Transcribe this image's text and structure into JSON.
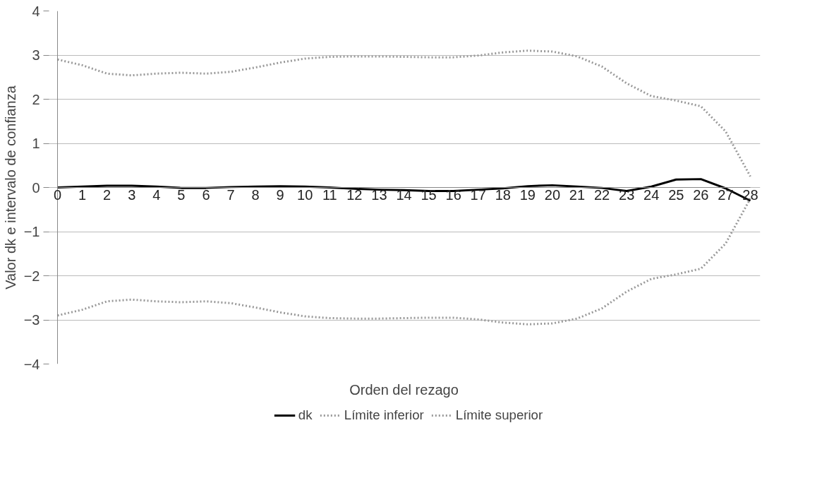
{
  "chart_data": {
    "type": "line",
    "xlabel": "Orden del rezago",
    "ylabel": "Valor dk e intervalo de confianza",
    "x": [
      0,
      1,
      2,
      3,
      4,
      5,
      6,
      7,
      8,
      9,
      10,
      11,
      12,
      13,
      14,
      15,
      16,
      17,
      18,
      19,
      20,
      21,
      22,
      23,
      24,
      25,
      26,
      27,
      28
    ],
    "xlim": [
      0,
      28
    ],
    "xticks": [
      0,
      1,
      2,
      3,
      4,
      5,
      6,
      7,
      8,
      9,
      10,
      11,
      12,
      13,
      14,
      15,
      16,
      17,
      18,
      19,
      20,
      21,
      22,
      23,
      24,
      25,
      26,
      27,
      28
    ],
    "ylim": [
      -4,
      4
    ],
    "yticks": [
      -4,
      -3,
      -2,
      -1,
      0,
      1,
      2,
      3,
      4
    ],
    "grid": "y",
    "legend": "bottom",
    "marker": "none",
    "series": [
      {
        "name": "dk",
        "color": "#000000",
        "line_style": "solid",
        "values": [
          0,
          0.02,
          0.04,
          0.04,
          0.02,
          -0.01,
          -0.01,
          0.01,
          0.02,
          0.03,
          0.02,
          0,
          -0.03,
          -0.05,
          -0.06,
          -0.08,
          -0.08,
          -0.05,
          -0.02,
          0.03,
          0.05,
          0.02,
          -0.01,
          -0.08,
          0.02,
          0.18,
          0.19,
          -0.02,
          -0.3
        ]
      },
      {
        "name": "Límite inferior",
        "color": "#999999",
        "line_style": "dotted",
        "values": [
          -2.9,
          -2.77,
          -2.58,
          -2.54,
          -2.58,
          -2.6,
          -2.58,
          -2.62,
          -2.72,
          -2.83,
          -2.92,
          -2.96,
          -2.97,
          -2.97,
          -2.96,
          -2.95,
          -2.95,
          -2.99,
          -3.06,
          -3.1,
          -3.08,
          -2.97,
          -2.74,
          -2.36,
          -2.07,
          -1.97,
          -1.84,
          -1.27,
          -0.25
        ]
      },
      {
        "name": "Límite superior",
        "color": "#999999",
        "line_style": "dotted",
        "values": [
          2.9,
          2.77,
          2.58,
          2.54,
          2.58,
          2.6,
          2.58,
          2.62,
          2.72,
          2.83,
          2.92,
          2.96,
          2.97,
          2.97,
          2.96,
          2.95,
          2.95,
          2.99,
          3.06,
          3.1,
          3.08,
          2.97,
          2.74,
          2.36,
          2.07,
          1.97,
          1.84,
          1.27,
          0.25
        ]
      }
    ]
  }
}
